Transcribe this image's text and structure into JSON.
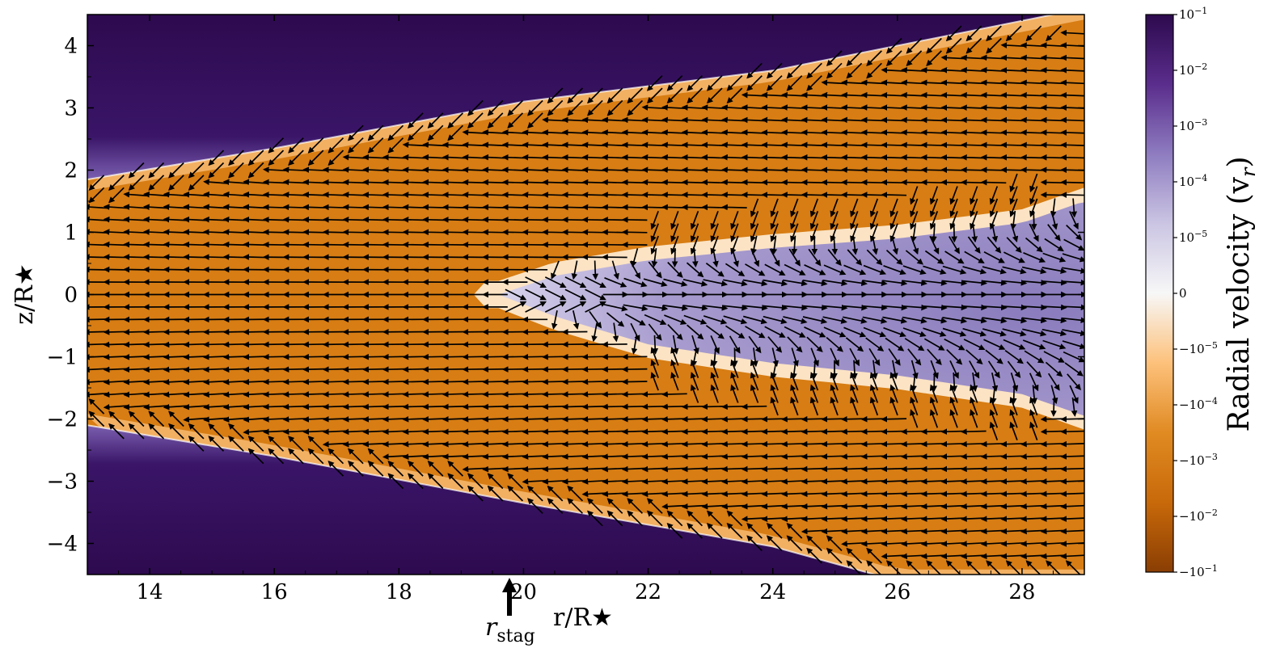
{
  "chart_data": {
    "type": "heatmap",
    "description_fields": {
      "xlabel": "r/R★",
      "ylabel": "z/R★",
      "colorbar_label": "Radial velocity (v",
      "colorbar_label_sub": "r",
      "colorbar_label_close": ")"
    },
    "xlim": [
      13,
      29
    ],
    "ylim": [
      -4.5,
      4.5
    ],
    "x_ticks": [
      14,
      16,
      18,
      20,
      22,
      24,
      26,
      28
    ],
    "x_tick_labels": [
      "14",
      "16",
      "18",
      "20",
      "22",
      "24",
      "26",
      "28"
    ],
    "y_ticks": [
      4,
      3,
      2,
      1,
      0,
      -1,
      -2,
      -3,
      -4
    ],
    "y_tick_labels": [
      "4",
      "3",
      "2",
      "1",
      "0",
      "−1",
      "−2",
      "−3",
      "−4"
    ],
    "colorbar": {
      "scale": "symlog",
      "ticks": [
        {
          "base": "10",
          "exp": "−1",
          "sign": ""
        },
        {
          "base": "10",
          "exp": "−2",
          "sign": ""
        },
        {
          "base": "10",
          "exp": "−3",
          "sign": ""
        },
        {
          "base": "10",
          "exp": "−4",
          "sign": ""
        },
        {
          "base": "10",
          "exp": "−5",
          "sign": ""
        },
        {
          "base": "0",
          "exp": "",
          "sign": ""
        },
        {
          "base": "10",
          "exp": "−5",
          "sign": "−"
        },
        {
          "base": "10",
          "exp": "−4",
          "sign": "−"
        },
        {
          "base": "10",
          "exp": "−3",
          "sign": "−"
        },
        {
          "base": "10",
          "exp": "−2",
          "sign": "−"
        },
        {
          "base": "10",
          "exp": "−1",
          "sign": "−"
        }
      ],
      "colors": [
        "#2d0a4e",
        "#5a2d8c",
        "#8e7cc0",
        "#cbc5e3",
        "#f7f7f7",
        "#fdc17b",
        "#e08a22",
        "#c8690a",
        "#8a3e03"
      ]
    },
    "regions": {
      "outer_atmosphere_upper_boundary_z": [
        [
          13,
          1.85
        ],
        [
          16,
          2.35
        ],
        [
          20,
          3.1
        ],
        [
          24,
          3.6
        ],
        [
          28,
          4.4
        ],
        [
          29,
          4.6
        ]
      ],
      "outer_atmosphere_lower_boundary_z": [
        [
          13,
          -2.1
        ],
        [
          16,
          -2.6
        ],
        [
          20,
          -3.35
        ],
        [
          24,
          -4.05
        ],
        [
          26,
          -4.6
        ],
        [
          29,
          -4.6
        ]
      ],
      "outflow_upper_boundary_z": [
        [
          19.6,
          0.0
        ],
        [
          20.5,
          0.3
        ],
        [
          22,
          0.55
        ],
        [
          24,
          0.75
        ],
        [
          26,
          0.9
        ],
        [
          28,
          1.15
        ],
        [
          29,
          1.5
        ]
      ],
      "outflow_lower_boundary_z": [
        [
          19.6,
          0.0
        ],
        [
          20.5,
          -0.35
        ],
        [
          22,
          -0.8
        ],
        [
          24,
          -1.1
        ],
        [
          26,
          -1.3
        ],
        [
          28,
          -1.6
        ],
        [
          29,
          -1.95
        ]
      ]
    },
    "stagnation_radius": 19.75,
    "annotation": {
      "main": "r",
      "sub": "stag"
    }
  }
}
